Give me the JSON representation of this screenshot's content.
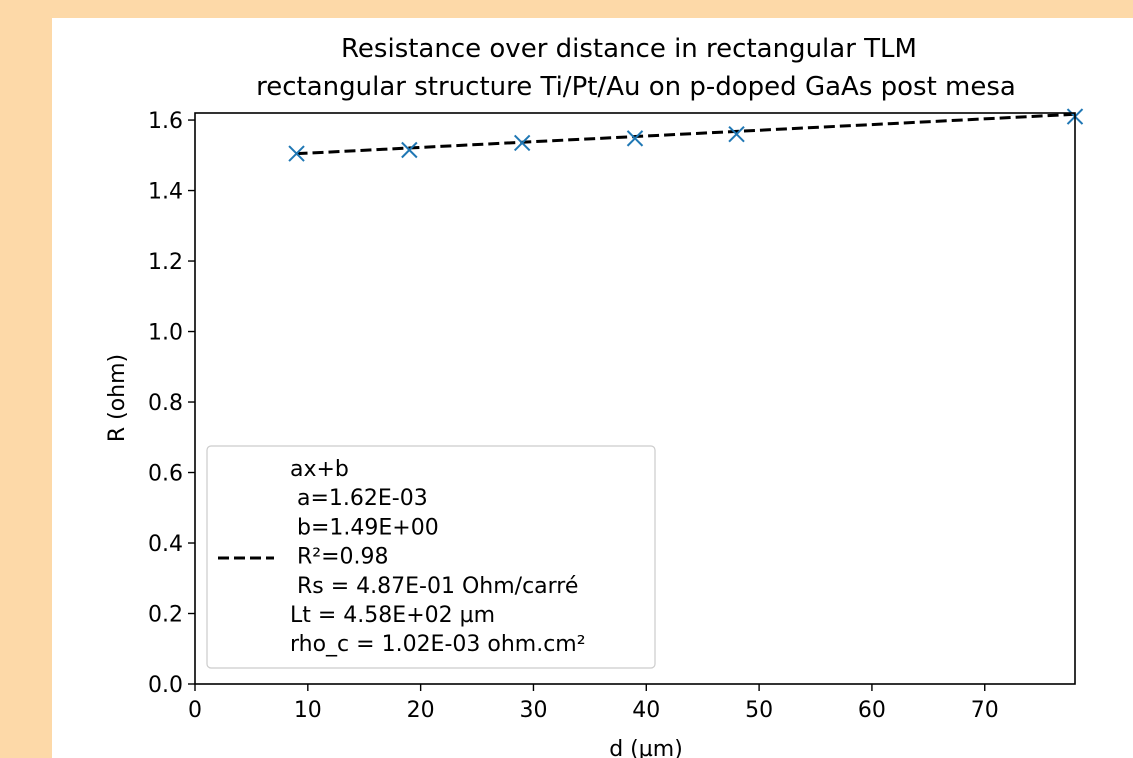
{
  "chart_data": {
    "type": "scatter",
    "title": "Resistance over distance in rectangular TLM",
    "subtitle": "rectangular structure Ti/Pt/Au on p-doped GaAs post mesa",
    "xlabel": "d (µm)",
    "ylabel": "R (ohm)",
    "xlim": [
      0,
      78
    ],
    "ylim": [
      0,
      1.62
    ],
    "x_ticks": [
      0,
      10,
      20,
      30,
      40,
      50,
      60,
      70
    ],
    "y_ticks": [
      0.0,
      0.2,
      0.4,
      0.6,
      0.8,
      1.0,
      1.2,
      1.4,
      1.6
    ],
    "grid": false,
    "legend_position": "lower-left",
    "points": {
      "marker": "x",
      "color": "#1f77b4",
      "x": [
        9,
        19,
        29,
        39,
        48,
        78
      ],
      "y": [
        1.505,
        1.515,
        1.535,
        1.548,
        1.56,
        1.61
      ]
    },
    "fit_line": {
      "style": "dashed",
      "color": "#000000",
      "a": 0.00162,
      "b": 1.49,
      "x_range": [
        9,
        78
      ]
    },
    "legend_lines": [
      "ax+b",
      " a=1.62E-03",
      " b=1.49E+00",
      " R²=0.98",
      " Rs = 4.87E-01 Ohm/carré",
      "Lt = 4.58E+02 µm",
      "rho_c = 1.02E-03 ohm.cm²"
    ]
  }
}
